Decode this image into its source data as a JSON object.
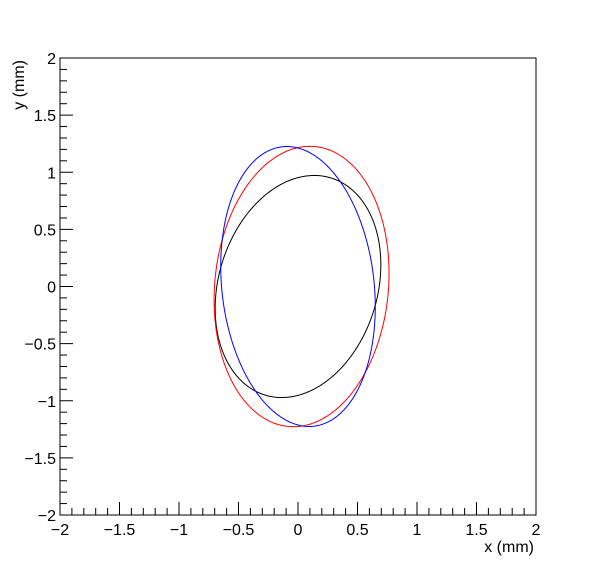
{
  "chart_data": {
    "type": "line",
    "title": "",
    "xlabel": "x (mm)",
    "ylabel": "y (mm)",
    "xlim": [
      -2,
      2
    ],
    "ylim": [
      -2,
      2
    ],
    "x_ticks": [
      -2,
      -1.5,
      -1,
      -0.5,
      0,
      0.5,
      1,
      1.5,
      2
    ],
    "y_ticks": [
      -2,
      -1.5,
      -1,
      -0.5,
      0,
      0.5,
      1,
      1.5,
      2
    ],
    "x_tick_labels": [
      "−2",
      "−1.5",
      "−1",
      "−0.5",
      "0",
      "0.5",
      "1",
      "1.5",
      "2"
    ],
    "y_tick_labels": [
      "−2",
      "−1.5",
      "−1",
      "−0.5",
      "0",
      "0.5",
      "1",
      "1.5",
      "2"
    ],
    "grid": false,
    "legend": "none",
    "series": [
      {
        "color": "#000000",
        "shape": "ellipse",
        "center": [
          0,
          0
        ],
        "semi_major": 0.99,
        "semi_minor": 0.67,
        "major_axis_angle_deg": 75
      },
      {
        "color": "#ff0000",
        "shape": "ellipse",
        "center": [
          0.03,
          0
        ],
        "semi_major": 1.23,
        "semi_minor": 0.73,
        "major_axis_angle_deg": 85
      },
      {
        "color": "#0000ff",
        "shape": "ellipse",
        "center": [
          0,
          0
        ],
        "semi_major": 1.23,
        "semi_minor": 0.64,
        "major_axis_angle_deg": 96
      }
    ]
  }
}
